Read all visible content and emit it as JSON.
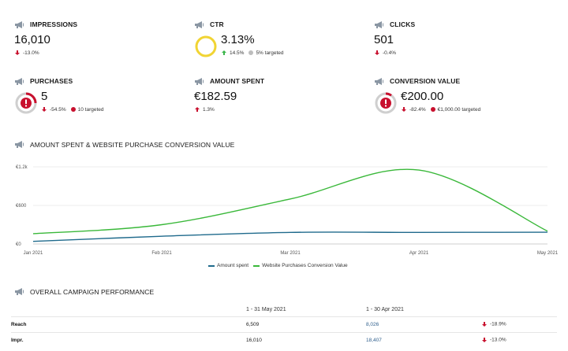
{
  "colors": {
    "negative": "#c8102e",
    "positive": "#3ab54a",
    "target_grey": "#bdbdbd",
    "ring_yellow": "#f1d433",
    "ring_grey": "#cfcfcf",
    "accent_red": "#c8102e",
    "line_blue": "#1f6a8c",
    "line_green": "#3ab83a",
    "icon_grey": "#8a96a3"
  },
  "kpis": [
    {
      "label": "IMPRESSIONS",
      "value": "16,010",
      "change": "-13.0%",
      "direction": "down"
    },
    {
      "label": "CTR",
      "value": "3.13%",
      "change": "14.5%",
      "direction": "up",
      "target": "5% targeted"
    },
    {
      "label": "CLICKS",
      "value": "501",
      "change": "-0.4%",
      "direction": "down"
    },
    {
      "label": "PURCHASES",
      "value": "5",
      "change": "-54.5%",
      "direction": "down",
      "target": "10 targeted"
    },
    {
      "label": "AMOUNT SPENT",
      "value": "€182.59",
      "change": "1.3%",
      "direction": "up"
    },
    {
      "label": "CONVERSION VALUE",
      "value": "€200.00",
      "change": "-82.4%",
      "direction": "down",
      "target": "€1,000.00 targeted"
    }
  ],
  "chart_section": {
    "title": "AMOUNT SPENT & WEBSITE PURCHASE CONVERSION VALUE"
  },
  "chart_data": {
    "type": "line",
    "x": [
      "Jan 2021",
      "Feb 2021",
      "Mar 2021",
      "Apr 2021",
      "May 2021"
    ],
    "series": [
      {
        "name": "Amount spent",
        "values": [
          40,
          120,
          180,
          180,
          183
        ]
      },
      {
        "name": "Website Purchases Conversion Value",
        "values": [
          160,
          300,
          700,
          1150,
          200
        ]
      }
    ],
    "yticks": [
      "€0",
      "€600",
      "€1.2k"
    ],
    "ylim": [
      0,
      1200
    ],
    "grid": true,
    "legend": "bottom"
  },
  "performance": {
    "title": "OVERALL CAMPAIGN PERFORMANCE",
    "columns": [
      "1 - 31 May 2021",
      "1 - 30 Apr 2021"
    ],
    "rows": [
      {
        "label": "Reach",
        "current": "6,509",
        "previous": "8,026",
        "change": "-18.9%"
      },
      {
        "label": "Impr.",
        "current": "16,010",
        "previous": "18,407",
        "change": "-13.0%"
      }
    ]
  }
}
